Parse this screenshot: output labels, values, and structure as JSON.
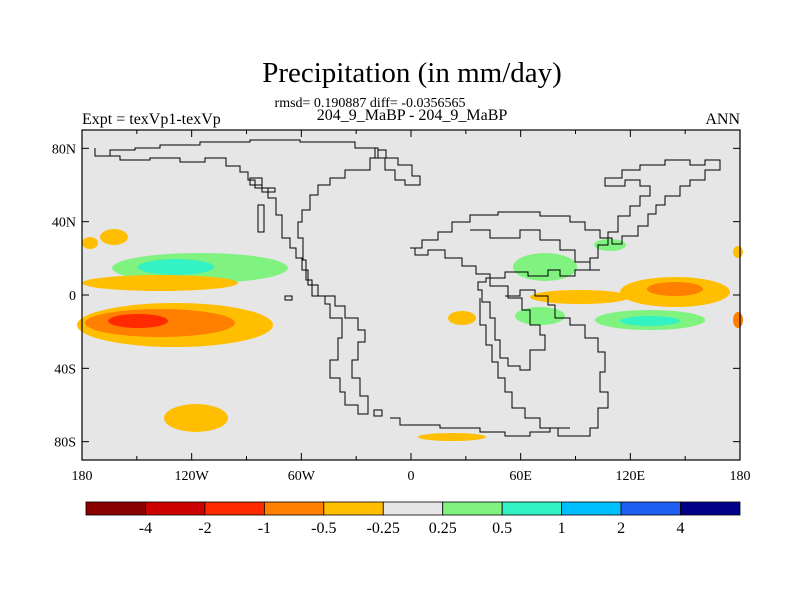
{
  "chart_data": {
    "type": "contour_map",
    "title": "Precipitation (in mm/day)",
    "stats_line": "rmsd= 0.190887 diff= -0.0356565",
    "subtitle": "204_9_MaBP - 204_9_MaBP",
    "left_label": "Expt = texVp1-texVp",
    "right_label": "ANN",
    "xlim": [
      -180,
      180
    ],
    "ylim": [
      -90,
      90
    ],
    "x_ticks": [
      {
        "value": -180,
        "label": "180"
      },
      {
        "value": -120,
        "label": "120W"
      },
      {
        "value": -60,
        "label": "60W"
      },
      {
        "value": 0,
        "label": "0"
      },
      {
        "value": 60,
        "label": "60E"
      },
      {
        "value": 120,
        "label": "120E"
      },
      {
        "value": 180,
        "label": "180"
      }
    ],
    "y_ticks": [
      {
        "value": 80,
        "label": "80N"
      },
      {
        "value": 40,
        "label": "40N"
      },
      {
        "value": 0,
        "label": "0"
      },
      {
        "value": -40,
        "label": "40S"
      },
      {
        "value": -80,
        "label": "80S"
      }
    ],
    "colorbar": {
      "colors": [
        "#8b0000",
        "#cd0000",
        "#ff2a00",
        "#ff7f00",
        "#ffbf00",
        "#e6e6e6",
        "#7ff27f",
        "#33f2c4",
        "#00bfff",
        "#1f5ff2",
        "#00008b"
      ],
      "labels": [
        "-4",
        "-2",
        "-1",
        "-0.5",
        "-0.25",
        "0.25",
        "0.5",
        "1",
        "2",
        "4"
      ]
    },
    "background_level_color": "#e6e6e6"
  }
}
